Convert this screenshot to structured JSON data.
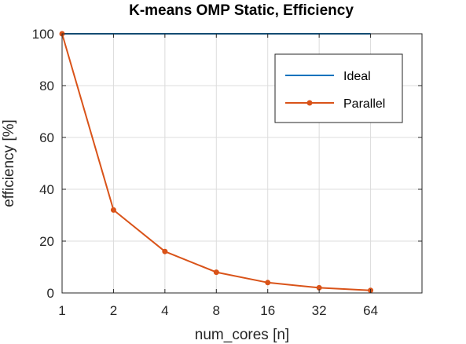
{
  "chart_data": {
    "type": "line",
    "title": "K-means OMP Static, Efficiency",
    "xlabel": "num_cores [n]",
    "ylabel": "efficiency [%]",
    "x_scale": "log2",
    "x": [
      1,
      2,
      4,
      8,
      16,
      32,
      64
    ],
    "x_tick_labels": [
      "1",
      "2",
      "4",
      "8",
      "16",
      "32",
      "64"
    ],
    "xlim": [
      1,
      128
    ],
    "ylim": [
      0,
      100
    ],
    "y_ticks": [
      0,
      20,
      40,
      60,
      80,
      100
    ],
    "grid": true,
    "legend_position": "top-right",
    "series": [
      {
        "name": "Ideal",
        "color": "#0072bd",
        "marker": "none",
        "values": [
          100,
          100,
          100,
          100,
          100,
          100,
          100
        ]
      },
      {
        "name": "Parallel",
        "color": "#d95319",
        "marker": "dot",
        "values": [
          100,
          32,
          16,
          8,
          4,
          2,
          1
        ]
      }
    ]
  }
}
